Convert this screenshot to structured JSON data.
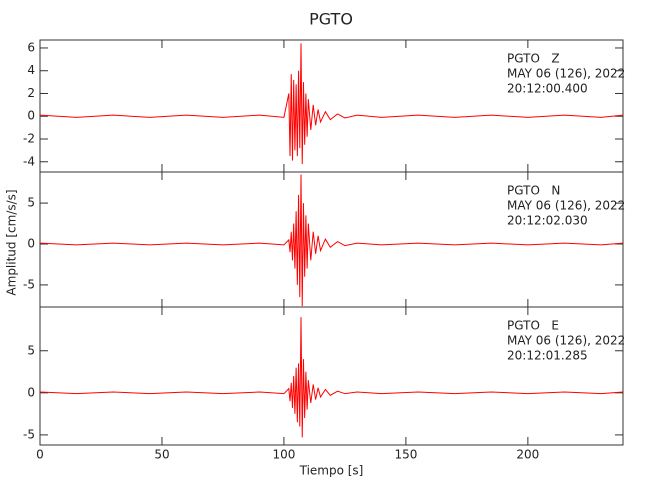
{
  "title": "PGTO",
  "chart_data": [
    {
      "type": "line",
      "annotation": [
        "PGTO   Z",
        "MAY 06 (126), 2022",
        "20:12:00.400"
      ],
      "xlim": [
        0,
        239
      ],
      "ylim": [
        -4.9,
        6.7
      ],
      "yticks": [
        -4,
        -2,
        0,
        2,
        4,
        6
      ],
      "series": [
        {
          "color": "#ff0000",
          "x": [
            0,
            15,
            30,
            45,
            60,
            75,
            90,
            100,
            102,
            102.5,
            103,
            103.5,
            104,
            104.5,
            105,
            105.5,
            106,
            106.5,
            107,
            107.5,
            108,
            108.5,
            109,
            109.5,
            110,
            111,
            112,
            113,
            114,
            115,
            117,
            119,
            122,
            125,
            130,
            140,
            155,
            170,
            185,
            200,
            215,
            230,
            239
          ],
          "values": [
            0.1,
            -0.1,
            0.1,
            -0.1,
            0.1,
            -0.1,
            0.1,
            -0.1,
            2,
            -3.5,
            3.7,
            -3.9,
            3.2,
            -3,
            2.8,
            -3.5,
            4,
            -2.8,
            6.4,
            -4.2,
            3,
            -2.5,
            2,
            -1.8,
            1.5,
            -1.2,
            1,
            -0.8,
            0.6,
            -0.5,
            0.4,
            -0.3,
            0.2,
            -0.15,
            0.1,
            -0.1,
            0.1,
            -0.1,
            0.1,
            -0.1,
            0.1,
            -0.1,
            0.1
          ]
        }
      ]
    },
    {
      "type": "line",
      "annotation": [
        "PGTO   N",
        "MAY 06 (126), 2022",
        "20:12:02.030"
      ],
      "ylabel": "Amplitud [cm/s/s]",
      "xlim": [
        0,
        239
      ],
      "ylim": [
        -7.7,
        8.8
      ],
      "yticks": [
        -5,
        0,
        5
      ],
      "series": [
        {
          "color": "#ff0000",
          "x": [
            0,
            15,
            30,
            45,
            60,
            75,
            90,
            100,
            102,
            102.5,
            103,
            103.5,
            104,
            104.5,
            105,
            105.5,
            106,
            106.5,
            107,
            107.5,
            108,
            108.5,
            109,
            109.5,
            110,
            111,
            112,
            113,
            114,
            115,
            117,
            119,
            122,
            125,
            130,
            140,
            155,
            170,
            185,
            200,
            215,
            230,
            239
          ],
          "values": [
            0.1,
            -0.1,
            0.1,
            -0.1,
            0.1,
            -0.1,
            0.1,
            -0.1,
            0.5,
            -1,
            1.5,
            -2,
            2.5,
            -3,
            4,
            -5,
            6,
            -6.5,
            8.5,
            -7.6,
            5,
            -4,
            3.5,
            -3,
            2.5,
            -2,
            1.5,
            -1.2,
            1,
            -0.8,
            0.6,
            -0.4,
            0.3,
            -0.2,
            0.1,
            -0.1,
            0.1,
            -0.1,
            0.1,
            -0.1,
            0.1,
            -0.1,
            0.1
          ]
        }
      ]
    },
    {
      "type": "line",
      "annotation": [
        "PGTO   E",
        "MAY 06 (126), 2022",
        "20:12:01.285"
      ],
      "xlabel": "Tiempo [s]",
      "xlim": [
        0,
        239
      ],
      "ylim": [
        -6.2,
        10.2
      ],
      "yticks": [
        -5,
        0,
        5
      ],
      "xticks": [
        0,
        50,
        100,
        150,
        200
      ],
      "series": [
        {
          "color": "#ff0000",
          "x": [
            0,
            15,
            30,
            45,
            60,
            75,
            90,
            100,
            102,
            102.5,
            103,
            103.5,
            104,
            104.5,
            105,
            105.5,
            106,
            106.5,
            107,
            107.5,
            108,
            108.5,
            109,
            109.5,
            110,
            111,
            112,
            113,
            114,
            115,
            117,
            119,
            122,
            125,
            130,
            140,
            155,
            170,
            185,
            200,
            215,
            230,
            239
          ],
          "values": [
            0.1,
            -0.1,
            0.1,
            -0.1,
            0.1,
            -0.1,
            0.1,
            -0.1,
            0.5,
            -1,
            1.2,
            -1.8,
            2,
            -2.5,
            3,
            -3.5,
            3.5,
            -4,
            9,
            -5.3,
            4,
            -3,
            2.5,
            -2,
            1.5,
            -1.2,
            1,
            -0.8,
            0.6,
            -0.5,
            0.4,
            -0.3,
            0.2,
            -0.1,
            0.1,
            -0.1,
            0.1,
            -0.1,
            0.1,
            -0.1,
            0.1,
            -0.1,
            0.1
          ]
        }
      ]
    }
  ]
}
